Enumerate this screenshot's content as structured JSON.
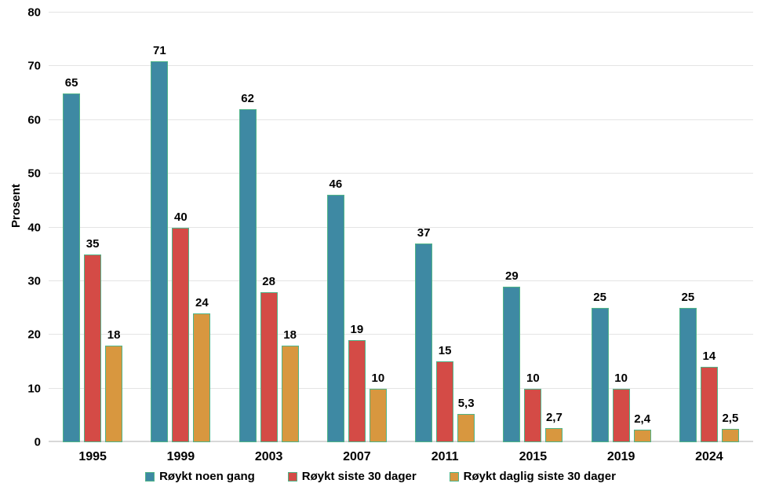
{
  "chart_data": {
    "type": "bar",
    "title": "",
    "xlabel": "",
    "ylabel": "Prosent",
    "ylim": [
      0,
      80
    ],
    "ytick_step": 10,
    "grid": true,
    "legend_position": "bottom",
    "decimal_separator": ",",
    "categories": [
      "1995",
      "1999",
      "2003",
      "2007",
      "2011",
      "2015",
      "2019",
      "2024"
    ],
    "series": [
      {
        "name": "Røykt noen gang",
        "color": "#3e89a3",
        "values": [
          65,
          71,
          62,
          46,
          37,
          29,
          25,
          25
        ],
        "labels": [
          "65",
          "71",
          "62",
          "46",
          "37",
          "29",
          "25",
          "25"
        ]
      },
      {
        "name": "Røykt siste 30 dager",
        "color": "#d44b46",
        "values": [
          35,
          40,
          28,
          19,
          15,
          10,
          10,
          14
        ],
        "labels": [
          "35",
          "40",
          "28",
          "19",
          "15",
          "10",
          "10",
          "14"
        ]
      },
      {
        "name": "Røykt daglig siste 30 dager",
        "color": "#d8973f",
        "values": [
          18,
          24,
          18,
          10,
          5.3,
          2.7,
          2.4,
          2.5
        ],
        "labels": [
          "18",
          "24",
          "18",
          "10",
          "5,3",
          "2,7",
          "2,4",
          "2,5"
        ]
      }
    ],
    "bar_outline_color": "#50b488",
    "gridline_color": "#e4e4e4",
    "axisline_color": "#d8d8d8",
    "yticks": [
      "0",
      "10",
      "20",
      "30",
      "40",
      "50",
      "60",
      "70",
      "80"
    ]
  }
}
